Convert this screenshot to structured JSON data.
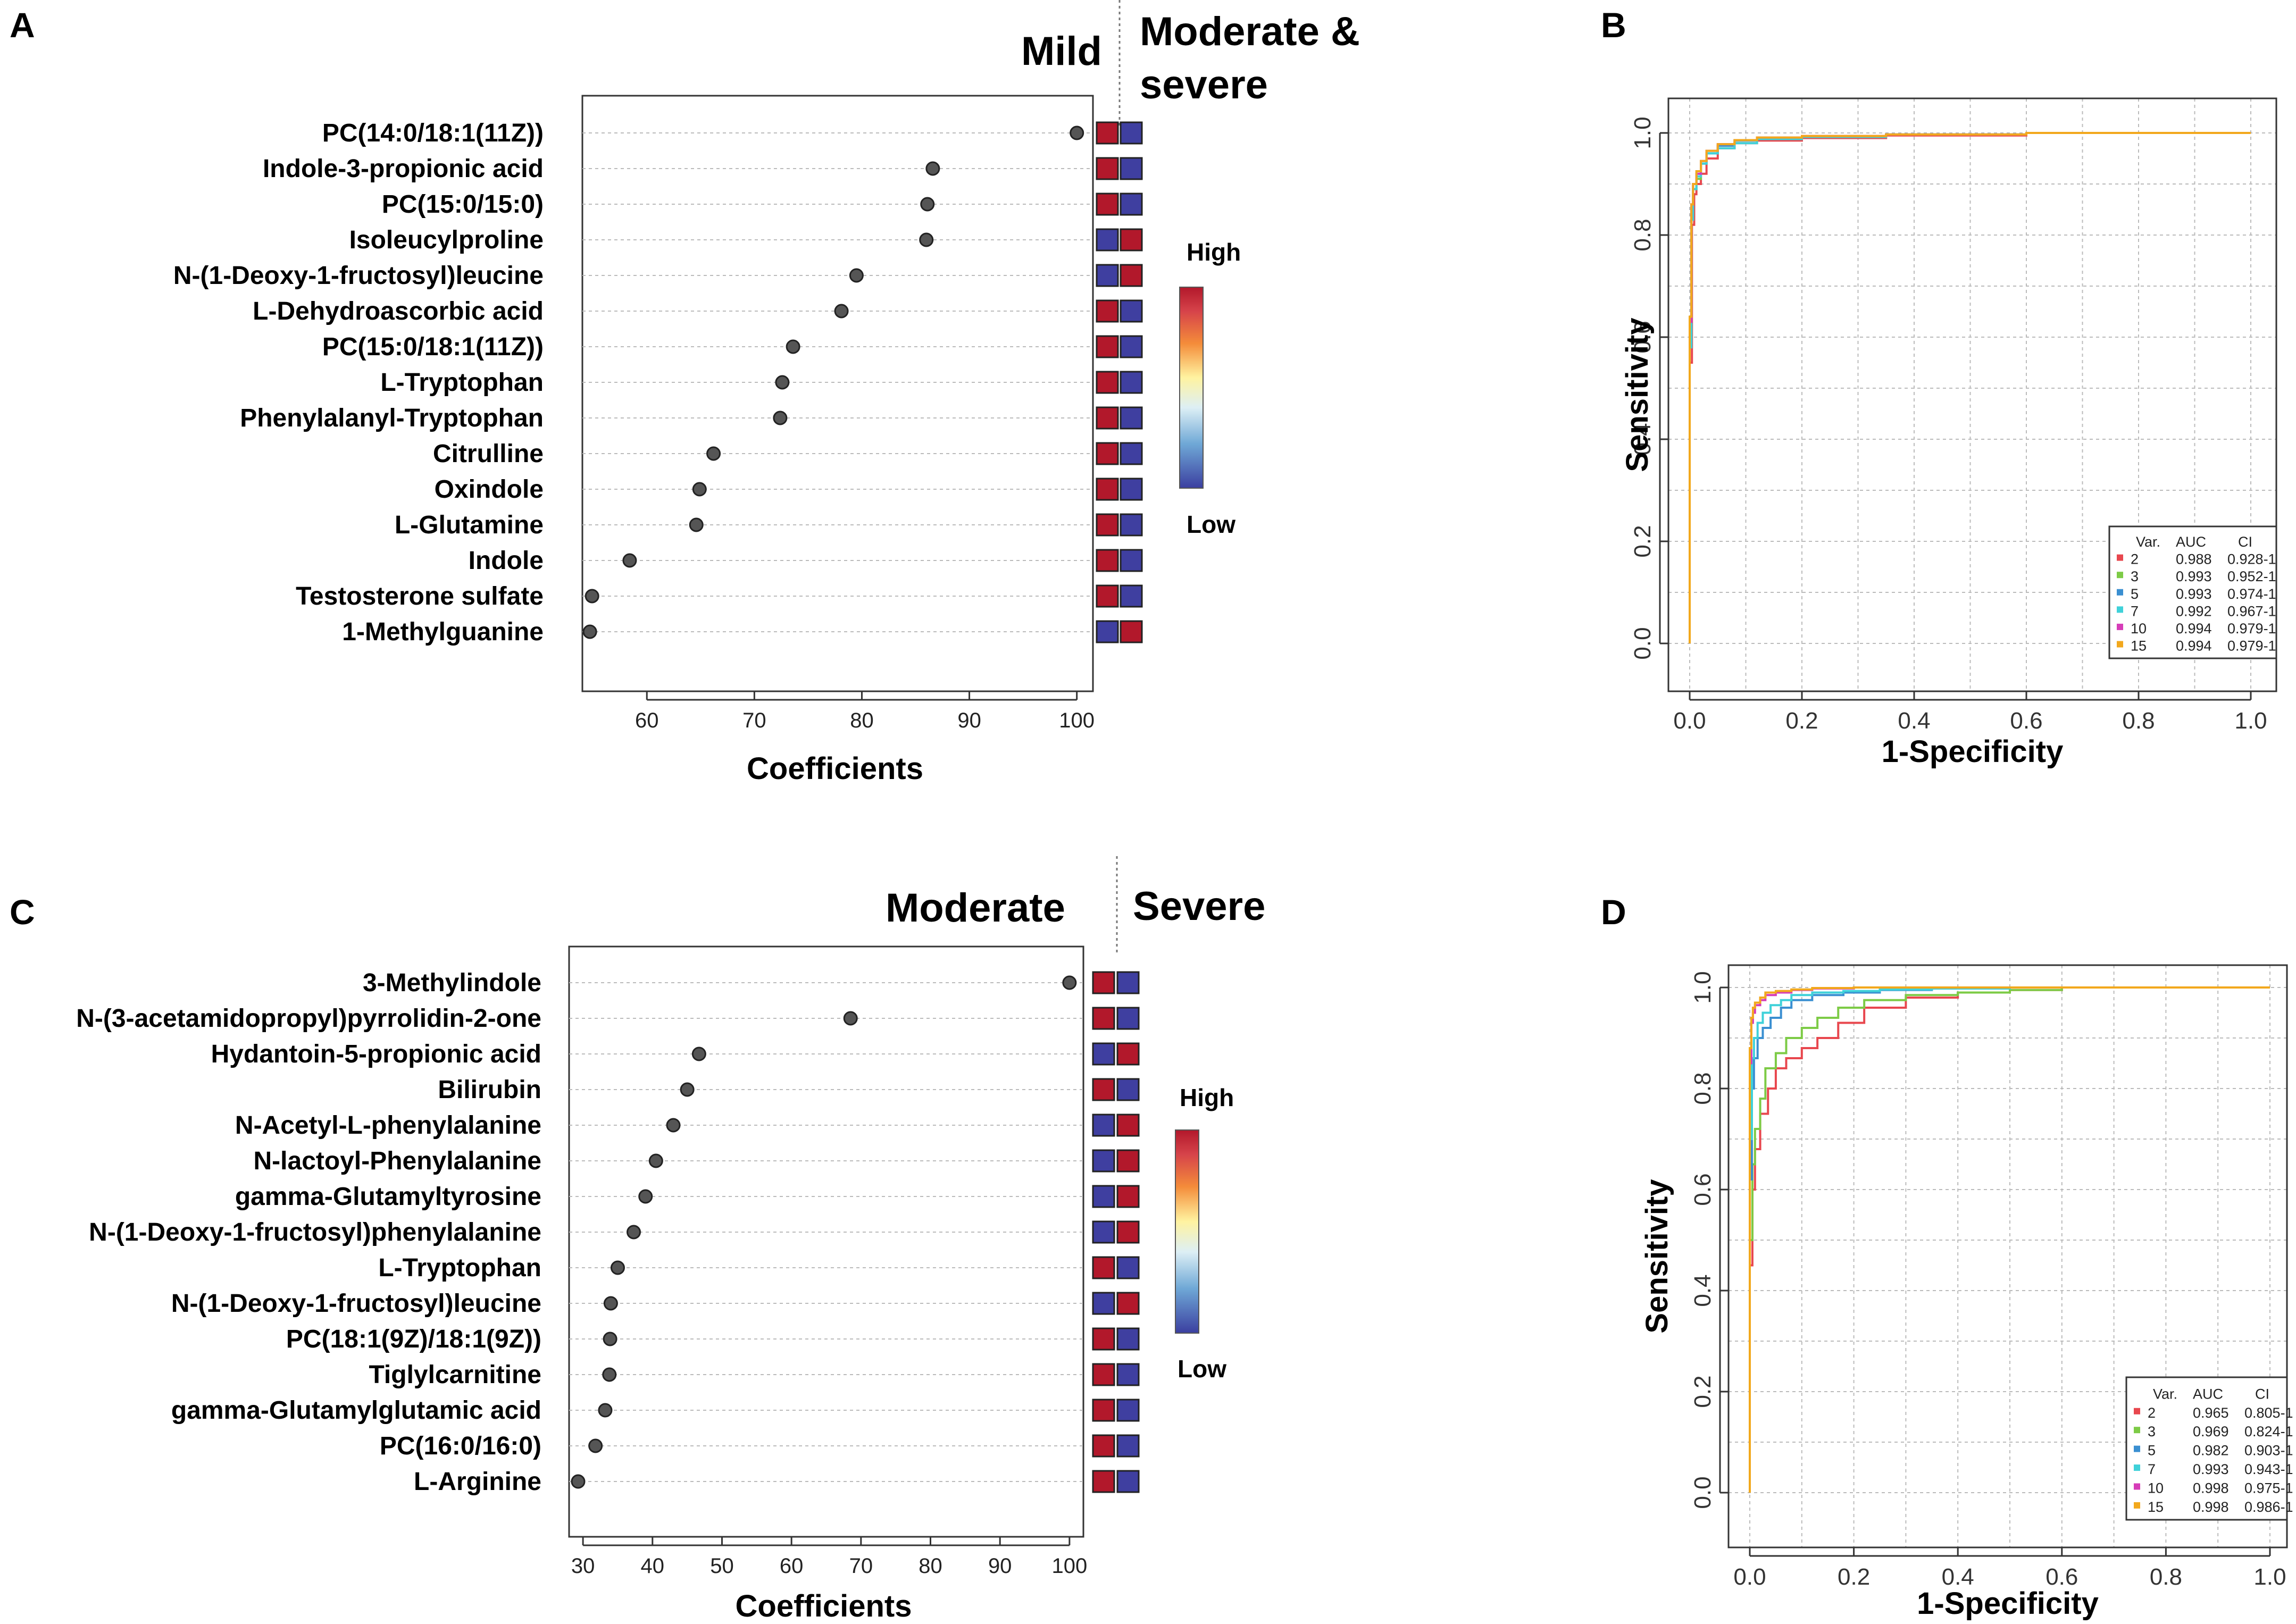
{
  "panels": {
    "A": {
      "letter": "A",
      "group_left": "Mild",
      "group_right_line1": "Moderate &",
      "group_right_line2": "severe",
      "high_label": "High",
      "low_label": "Low"
    },
    "B": {
      "letter": "B"
    },
    "C": {
      "letter": "C",
      "group_left": "Moderate",
      "group_right": "Severe",
      "high_label": "High",
      "low_label": "Low"
    },
    "D": {
      "letter": "D"
    }
  },
  "colors": {
    "high": "#B2182B",
    "low": "#3F3FA0",
    "dot": "#555555"
  },
  "chart_data": [
    {
      "id": "A",
      "type": "scatter",
      "subtype": "dot-plot",
      "xlabel": "Coefficients",
      "xlim": [
        54,
        101.5
      ],
      "xticks": [
        60,
        70,
        80,
        90,
        100
      ],
      "metabolites": [
        "PC(14:0/18:1(11Z))",
        "Indole-3-propionic acid",
        "PC(15:0/15:0)",
        "Isoleucylproline",
        "N-(1-Deoxy-1-fructosyl)leucine",
        "L-Dehydroascorbic acid",
        "PC(15:0/18:1(11Z))",
        "L-Tryptophan",
        "Phenylalanyl-Tryptophan",
        "Citrulline",
        "Oxindole",
        "L-Glutamine",
        "Indole",
        "Testosterone sulfate",
        "1-Methylguanine"
      ],
      "values": [
        100,
        86.6,
        86.1,
        86.0,
        79.5,
        78.1,
        73.6,
        72.6,
        72.4,
        66.2,
        64.9,
        64.6,
        58.4,
        54.9,
        54.7
      ],
      "heat_columns": [
        "Mild",
        "Moderate & severe"
      ],
      "heat": [
        [
          "high",
          "low"
        ],
        [
          "high",
          "low"
        ],
        [
          "high",
          "low"
        ],
        [
          "low",
          "high"
        ],
        [
          "low",
          "high"
        ],
        [
          "high",
          "low"
        ],
        [
          "high",
          "low"
        ],
        [
          "high",
          "low"
        ],
        [
          "high",
          "low"
        ],
        [
          "high",
          "low"
        ],
        [
          "high",
          "low"
        ],
        [
          "high",
          "low"
        ],
        [
          "high",
          "low"
        ],
        [
          "high",
          "low"
        ],
        [
          "low",
          "high"
        ]
      ]
    },
    {
      "id": "B",
      "type": "line",
      "subtype": "roc",
      "xlabel": "1-Specificity",
      "ylabel": "Sensitivity",
      "xlim": [
        0,
        1
      ],
      "ylim": [
        0,
        1
      ],
      "xticks": [
        "0.0",
        "0.2",
        "0.4",
        "0.6",
        "0.8",
        "1.0"
      ],
      "yticks": [
        "0.0",
        "0.2",
        "0.4",
        "0.6",
        "0.8",
        "1.0"
      ],
      "legend_header": [
        "Var.",
        "AUC",
        "CI"
      ],
      "legend_position": "bottom-right",
      "series": [
        {
          "var": "2",
          "auc": "0.988",
          "ci": "0.928-1",
          "color": "#E8474E",
          "x": [
            0,
            0.004,
            0.008,
            0.012,
            0.02,
            0.03,
            0.05,
            0.08,
            0.12,
            0.2,
            0.35,
            0.6,
            1.0
          ],
          "y": [
            0,
            0.55,
            0.82,
            0.88,
            0.9,
            0.92,
            0.95,
            0.97,
            0.98,
            0.985,
            0.99,
            0.995,
            1.0
          ]
        },
        {
          "var": "3",
          "auc": "0.993",
          "ci": "0.952-1",
          "color": "#7DCB46",
          "x": [
            0,
            0.003,
            0.006,
            0.012,
            0.02,
            0.03,
            0.05,
            0.08,
            0.12,
            0.2,
            0.35,
            0.6,
            1.0
          ],
          "y": [
            0,
            0.6,
            0.84,
            0.89,
            0.91,
            0.94,
            0.96,
            0.975,
            0.985,
            0.99,
            0.993,
            0.997,
            1.0
          ]
        },
        {
          "var": "5",
          "auc": "0.993",
          "ci": "0.974-1",
          "color": "#3A8FD1",
          "x": [
            0,
            0.003,
            0.006,
            0.012,
            0.02,
            0.03,
            0.05,
            0.08,
            0.12,
            0.2,
            0.35,
            0.6,
            1.0
          ],
          "y": [
            0,
            0.62,
            0.85,
            0.9,
            0.92,
            0.94,
            0.96,
            0.975,
            0.985,
            0.99,
            0.993,
            0.997,
            1.0
          ]
        },
        {
          "var": "7",
          "auc": "0.992",
          "ci": "0.967-1",
          "color": "#3FD1D9",
          "x": [
            0,
            0.003,
            0.006,
            0.012,
            0.02,
            0.03,
            0.05,
            0.08,
            0.12,
            0.2,
            0.35,
            0.6,
            1.0
          ],
          "y": [
            0,
            0.58,
            0.83,
            0.89,
            0.915,
            0.94,
            0.96,
            0.97,
            0.98,
            0.988,
            0.992,
            0.997,
            1.0
          ]
        },
        {
          "var": "10",
          "auc": "0.994",
          "ci": "0.979-1",
          "color": "#D63DB8",
          "x": [
            0,
            0.003,
            0.006,
            0.012,
            0.02,
            0.03,
            0.05,
            0.08,
            0.12,
            0.2,
            0.35,
            0.6,
            1.0
          ],
          "y": [
            0,
            0.63,
            0.86,
            0.9,
            0.92,
            0.945,
            0.965,
            0.978,
            0.986,
            0.991,
            0.994,
            0.997,
            1.0
          ]
        },
        {
          "var": "15",
          "auc": "0.994",
          "ci": "0.979-1",
          "color": "#F2A81D",
          "x": [
            0,
            0.003,
            0.006,
            0.012,
            0.02,
            0.03,
            0.05,
            0.08,
            0.12,
            0.2,
            0.35,
            0.6,
            1.0
          ],
          "y": [
            0,
            0.64,
            0.86,
            0.9,
            0.925,
            0.945,
            0.965,
            0.978,
            0.986,
            0.991,
            0.994,
            0.997,
            1.0
          ]
        }
      ]
    },
    {
      "id": "C",
      "type": "scatter",
      "subtype": "dot-plot",
      "xlabel": "Coefficients",
      "xlim": [
        28,
        102
      ],
      "xticks": [
        30,
        40,
        50,
        60,
        70,
        80,
        90,
        100
      ],
      "metabolites": [
        "3-Methylindole",
        "N-(3-acetamidopropyl)pyrrolidin-2-one",
        "Hydantoin-5-propionic acid",
        "Bilirubin",
        "N-Acetyl-L-phenylalanine",
        "N-lactoyl-Phenylalanine",
        "gamma-Glutamyltyrosine",
        "N-(1-Deoxy-1-fructosyl)phenylalanine",
        "L-Tryptophan",
        "N-(1-Deoxy-1-fructosyl)leucine",
        "PC(18:1(9Z)/18:1(9Z))",
        "Tiglylcarnitine",
        "gamma-Glutamylglutamic acid",
        "PC(16:0/16:0)",
        "L-Arginine"
      ],
      "values": [
        100,
        68.5,
        46.7,
        45.0,
        43.0,
        40.5,
        39.0,
        37.3,
        35.0,
        34.0,
        33.9,
        33.8,
        33.2,
        31.8,
        29.3
      ],
      "heat_columns": [
        "Moderate",
        "Severe"
      ],
      "heat": [
        [
          "high",
          "low"
        ],
        [
          "high",
          "low"
        ],
        [
          "low",
          "high"
        ],
        [
          "high",
          "low"
        ],
        [
          "low",
          "high"
        ],
        [
          "low",
          "high"
        ],
        [
          "low",
          "high"
        ],
        [
          "low",
          "high"
        ],
        [
          "high",
          "low"
        ],
        [
          "low",
          "high"
        ],
        [
          "high",
          "low"
        ],
        [
          "high",
          "low"
        ],
        [
          "high",
          "low"
        ],
        [
          "high",
          "low"
        ],
        [
          "high",
          "low"
        ]
      ]
    },
    {
      "id": "D",
      "type": "line",
      "subtype": "roc",
      "xlabel": "1-Specificity",
      "ylabel": "Sensitivity",
      "xlim": [
        0,
        1
      ],
      "ylim": [
        0,
        1
      ],
      "xticks": [
        "0.0",
        "0.2",
        "0.4",
        "0.6",
        "0.8",
        "1.0"
      ],
      "yticks": [
        "0.0",
        "0.2",
        "0.4",
        "0.6",
        "0.8",
        "1.0"
      ],
      "legend_header": [
        "Var.",
        "AUC",
        "CI"
      ],
      "legend_position": "bottom-right",
      "series": [
        {
          "var": "2",
          "auc": "0.965",
          "ci": "0.805-1",
          "color": "#E8474E",
          "x": [
            0,
            0.005,
            0.01,
            0.02,
            0.035,
            0.05,
            0.07,
            0.1,
            0.13,
            0.17,
            0.22,
            0.3,
            0.4,
            0.5,
            0.6,
            0.8,
            1.0
          ],
          "y": [
            0,
            0.45,
            0.6,
            0.68,
            0.75,
            0.8,
            0.84,
            0.86,
            0.88,
            0.9,
            0.93,
            0.96,
            0.98,
            0.99,
            0.995,
            1.0,
            1.0
          ]
        },
        {
          "var": "3",
          "auc": "0.969",
          "ci": "0.824-1",
          "color": "#7DCB46",
          "x": [
            0,
            0.005,
            0.01,
            0.02,
            0.03,
            0.05,
            0.07,
            0.1,
            0.13,
            0.17,
            0.22,
            0.3,
            0.4,
            0.5,
            0.6,
            0.8,
            1.0
          ],
          "y": [
            0,
            0.5,
            0.65,
            0.72,
            0.78,
            0.84,
            0.87,
            0.9,
            0.92,
            0.94,
            0.96,
            0.975,
            0.985,
            0.99,
            0.995,
            1.0,
            1.0
          ]
        },
        {
          "var": "5",
          "auc": "0.982",
          "ci": "0.903-1",
          "color": "#3A8FD1",
          "x": [
            0,
            0.004,
            0.008,
            0.015,
            0.025,
            0.04,
            0.06,
            0.08,
            0.12,
            0.18,
            0.25,
            0.35,
            0.5,
            0.7,
            1.0
          ],
          "y": [
            0,
            0.62,
            0.8,
            0.86,
            0.9,
            0.92,
            0.94,
            0.96,
            0.975,
            0.985,
            0.99,
            0.995,
            0.998,
            1.0,
            1.0
          ]
        },
        {
          "var": "7",
          "auc": "0.993",
          "ci": "0.943-1",
          "color": "#3FD1D9",
          "x": [
            0,
            0.004,
            0.008,
            0.015,
            0.025,
            0.04,
            0.06,
            0.08,
            0.12,
            0.18,
            0.25,
            0.35,
            0.5,
            0.7,
            1.0
          ],
          "y": [
            0,
            0.7,
            0.86,
            0.9,
            0.93,
            0.95,
            0.965,
            0.975,
            0.985,
            0.99,
            0.993,
            0.996,
            0.998,
            1.0,
            1.0
          ]
        },
        {
          "var": "10",
          "auc": "0.998",
          "ci": "0.975-1",
          "color": "#D63DB8",
          "x": [
            0,
            0.003,
            0.006,
            0.01,
            0.02,
            0.03,
            0.05,
            0.08,
            0.12,
            0.2,
            0.35,
            0.6,
            1.0
          ],
          "y": [
            0,
            0.85,
            0.93,
            0.95,
            0.965,
            0.975,
            0.985,
            0.99,
            0.995,
            0.998,
            1.0,
            1.0,
            1.0
          ]
        },
        {
          "var": "15",
          "auc": "0.998",
          "ci": "0.986-1",
          "color": "#F2A81D",
          "x": [
            0,
            0.003,
            0.006,
            0.01,
            0.02,
            0.03,
            0.05,
            0.08,
            0.12,
            0.2,
            0.35,
            0.6,
            1.0
          ],
          "y": [
            0,
            0.88,
            0.94,
            0.96,
            0.97,
            0.98,
            0.99,
            0.993,
            0.996,
            0.999,
            1.0,
            1.0,
            1.0
          ]
        }
      ]
    }
  ]
}
